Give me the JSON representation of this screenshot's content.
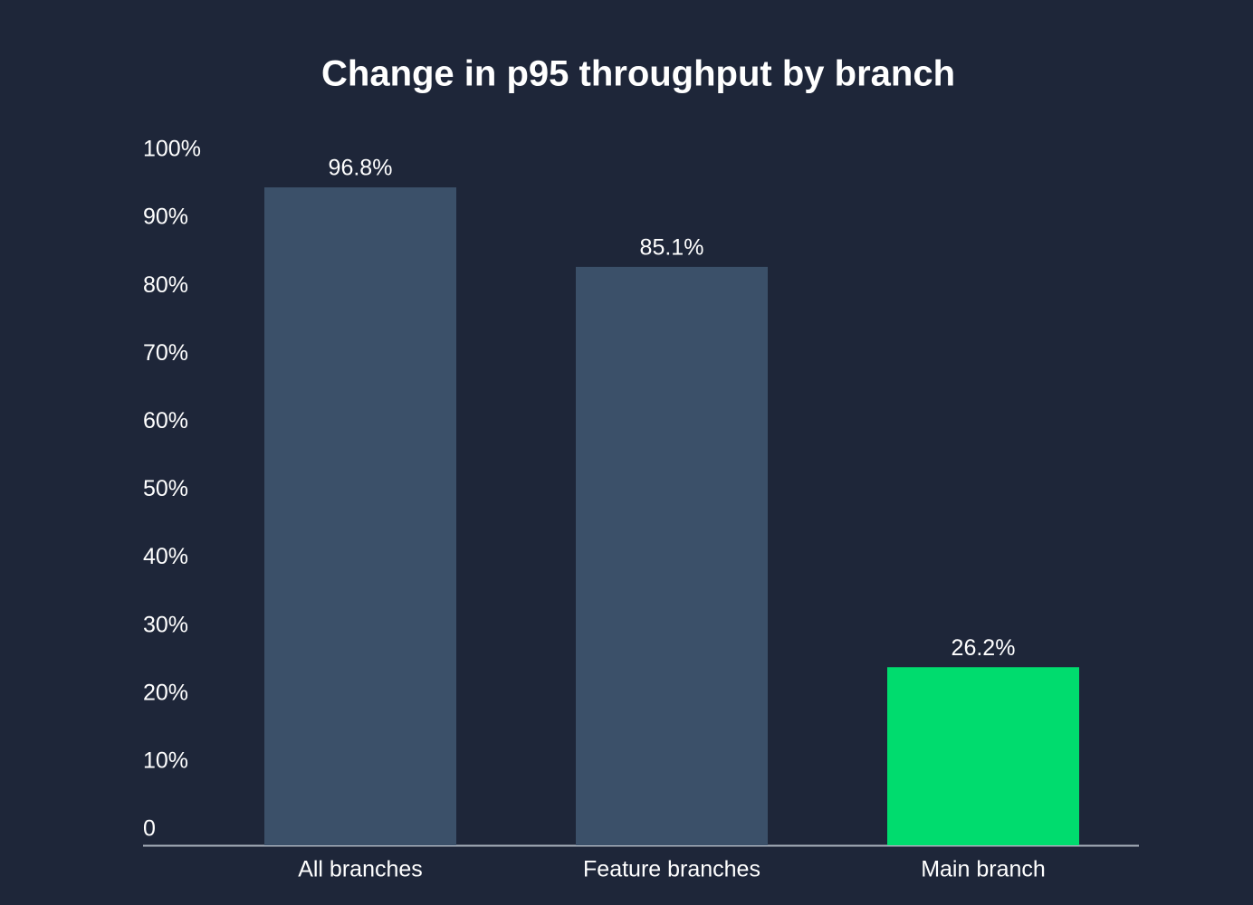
{
  "chart_data": {
    "type": "bar",
    "title": "Change in p95 throughput by branch",
    "categories": [
      "All branches",
      "Feature branches",
      "Main branch"
    ],
    "values": [
      96.8,
      85.1,
      26.2
    ],
    "value_labels": [
      "96.8%",
      "85.1%",
      "26.2%"
    ],
    "colors": [
      "#3b5069",
      "#3b5069",
      "#00dc6e"
    ],
    "ylim": [
      0,
      100
    ],
    "yticks": [
      0,
      {
        "value": 10,
        "label": "10%"
      },
      {
        "value": 20,
        "label": "20%"
      },
      {
        "value": 30,
        "label": "30%"
      },
      {
        "value": 40,
        "label": "40%"
      },
      {
        "value": 50,
        "label": "50%"
      },
      {
        "value": 60,
        "label": "60%"
      },
      {
        "value": 70,
        "label": "70%"
      },
      {
        "value": 80,
        "label": "80%"
      },
      {
        "value": 90,
        "label": "90%"
      },
      {
        "value": 100,
        "label": "100%"
      }
    ],
    "grid": false
  }
}
